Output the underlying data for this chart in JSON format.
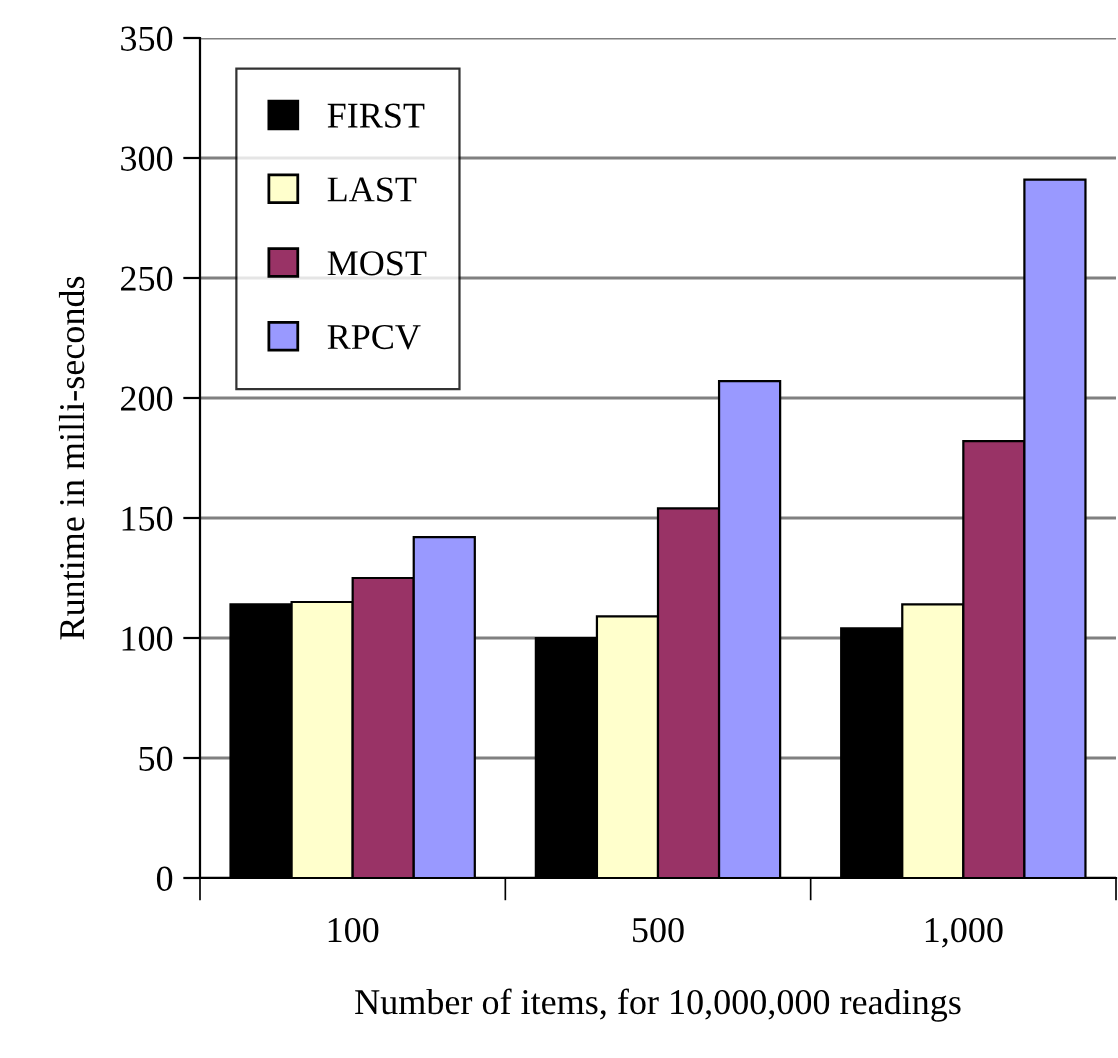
{
  "chart_data": {
    "type": "bar",
    "xlabel": "Number of items, for 10,000,000 readings",
    "ylabel": "Runtime in milli-seconds",
    "categories": [
      "100",
      "500",
      "1,000"
    ],
    "series": [
      {
        "name": "FIRST",
        "color": "#000000",
        "values": [
          114,
          100,
          104
        ]
      },
      {
        "name": "LAST",
        "color": "#ffffcc",
        "values": [
          115,
          109,
          114
        ]
      },
      {
        "name": "MOST",
        "color": "#993366",
        "values": [
          125,
          154,
          182
        ]
      },
      {
        "name": "RPCV",
        "color": "#9999ff",
        "values": [
          142,
          207,
          291
        ]
      }
    ],
    "ylim": [
      0,
      350
    ],
    "yticks": [
      0,
      50,
      100,
      150,
      200,
      250,
      300,
      350
    ],
    "grid": "y",
    "legend": "top left"
  }
}
